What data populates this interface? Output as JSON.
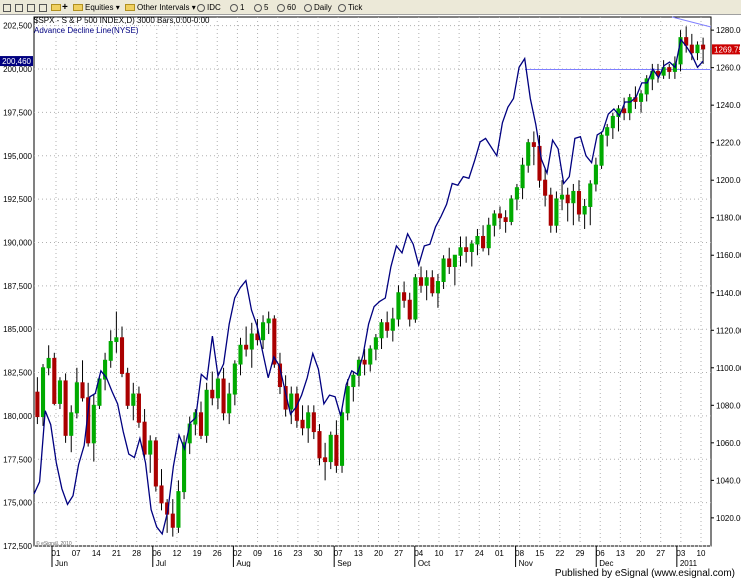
{
  "toolbar": {
    "items": [
      "Equities",
      "Other Intervals",
      "IDC",
      "1",
      "5",
      "60",
      "Daily",
      "Tick"
    ]
  },
  "footer": {
    "text": "Published by eSignal (www.esignal.com)"
  },
  "chart_data": {
    "type": "candlestick+line",
    "title": "$SPX - S & P 500 INDEX,D) 3000 Bars,0:00-0:00",
    "subtitle": "Advance Decline Line(NYSE)",
    "left_axis": {
      "ticks": [
        "172,500",
        "175,000",
        "177,500",
        "180,000",
        "182,500",
        "185,000",
        "187,500",
        "190,000",
        "192,500",
        "195,000",
        "197,500",
        "200,000",
        "202,500"
      ],
      "range": [
        172500,
        203000
      ]
    },
    "right_axis": {
      "ticks": [
        "1020.00",
        "1040.00",
        "1060.00",
        "1080.00",
        "1100.00",
        "1120.00",
        "1140.00",
        "1160.00",
        "1180.00",
        "1200.00",
        "1220.00",
        "1240.00",
        "1260.00",
        "1280.00"
      ],
      "range": [
        1005,
        1287
      ]
    },
    "left_last_label": "200,460",
    "right_last_label": "1269.75",
    "x_ticks": [
      "01",
      "07",
      "14",
      "21",
      "28",
      "06",
      "12",
      "19",
      "26",
      "02",
      "09",
      "16",
      "23",
      "30",
      "07",
      "13",
      "20",
      "27",
      "04",
      "10",
      "17",
      "24",
      "01",
      "08",
      "15",
      "22",
      "29",
      "06",
      "13",
      "20",
      "27",
      "03",
      "10"
    ],
    "x_months": [
      "Jun",
      "Jul",
      "Aug",
      "Sep",
      "Oct",
      "Nov",
      "Dec",
      "2011"
    ],
    "watermark": "© eSignal, 2010",
    "colors": {
      "up": "#00aa00",
      "down": "#aa0000",
      "ad_line": "#000080",
      "hline": "#8080ff"
    },
    "candles": [
      [
        1087,
        1095,
        1070,
        1074
      ],
      [
        1074,
        1102,
        1069,
        1100
      ],
      [
        1100,
        1112,
        1096,
        1105
      ],
      [
        1105,
        1108,
        1080,
        1081
      ],
      [
        1081,
        1095,
        1078,
        1093
      ],
      [
        1093,
        1097,
        1060,
        1064
      ],
      [
        1064,
        1080,
        1055,
        1076
      ],
      [
        1076,
        1100,
        1073,
        1092
      ],
      [
        1092,
        1104,
        1082,
        1084
      ],
      [
        1084,
        1092,
        1058,
        1060
      ],
      [
        1060,
        1086,
        1050,
        1080
      ],
      [
        1080,
        1095,
        1078,
        1094
      ],
      [
        1094,
        1108,
        1088,
        1104
      ],
      [
        1104,
        1120,
        1100,
        1114
      ],
      [
        1114,
        1130,
        1108,
        1116
      ],
      [
        1116,
        1122,
        1095,
        1097
      ],
      [
        1097,
        1100,
        1078,
        1080
      ],
      [
        1080,
        1092,
        1072,
        1086
      ],
      [
        1086,
        1090,
        1068,
        1071
      ],
      [
        1071,
        1078,
        1052,
        1054
      ],
      [
        1054,
        1064,
        1044,
        1061
      ],
      [
        1061,
        1063,
        1034,
        1037
      ],
      [
        1037,
        1046,
        1024,
        1028
      ],
      [
        1028,
        1030,
        1012,
        1022
      ],
      [
        1022,
        1030,
        1010,
        1015
      ],
      [
        1015,
        1040,
        1012,
        1034
      ],
      [
        1034,
        1064,
        1030,
        1060
      ],
      [
        1060,
        1074,
        1054,
        1070
      ],
      [
        1070,
        1078,
        1064,
        1076
      ],
      [
        1076,
        1082,
        1062,
        1064
      ],
      [
        1064,
        1092,
        1060,
        1088
      ],
      [
        1088,
        1098,
        1080,
        1084
      ],
      [
        1084,
        1098,
        1078,
        1094
      ],
      [
        1094,
        1100,
        1072,
        1076
      ],
      [
        1076,
        1092,
        1070,
        1086
      ],
      [
        1086,
        1104,
        1080,
        1102
      ],
      [
        1102,
        1116,
        1096,
        1112
      ],
      [
        1112,
        1122,
        1106,
        1110
      ],
      [
        1110,
        1124,
        1100,
        1118
      ],
      [
        1118,
        1126,
        1112,
        1115
      ],
      [
        1115,
        1128,
        1110,
        1124
      ],
      [
        1124,
        1130,
        1118,
        1126
      ],
      [
        1126,
        1128,
        1100,
        1102
      ],
      [
        1102,
        1108,
        1086,
        1090
      ],
      [
        1090,
        1096,
        1074,
        1078
      ],
      [
        1078,
        1090,
        1070,
        1086
      ],
      [
        1086,
        1090,
        1068,
        1072
      ],
      [
        1072,
        1080,
        1064,
        1068
      ],
      [
        1068,
        1080,
        1060,
        1076
      ],
      [
        1076,
        1080,
        1062,
        1066
      ],
      [
        1066,
        1070,
        1048,
        1052
      ],
      [
        1052,
        1060,
        1040,
        1050
      ],
      [
        1050,
        1066,
        1046,
        1064
      ],
      [
        1064,
        1072,
        1044,
        1048
      ],
      [
        1048,
        1078,
        1044,
        1076
      ],
      [
        1076,
        1094,
        1072,
        1090
      ],
      [
        1090,
        1098,
        1082,
        1096
      ],
      [
        1096,
        1106,
        1090,
        1104
      ],
      [
        1104,
        1110,
        1096,
        1102
      ],
      [
        1102,
        1112,
        1098,
        1110
      ],
      [
        1110,
        1118,
        1104,
        1116
      ],
      [
        1116,
        1126,
        1110,
        1124
      ],
      [
        1124,
        1130,
        1116,
        1120
      ],
      [
        1120,
        1132,
        1114,
        1126
      ],
      [
        1126,
        1144,
        1122,
        1140
      ],
      [
        1140,
        1146,
        1132,
        1136
      ],
      [
        1136,
        1140,
        1122,
        1126
      ],
      [
        1126,
        1150,
        1124,
        1148
      ],
      [
        1148,
        1154,
        1140,
        1144
      ],
      [
        1144,
        1152,
        1136,
        1148
      ],
      [
        1148,
        1152,
        1138,
        1140
      ],
      [
        1140,
        1150,
        1132,
        1146
      ],
      [
        1146,
        1160,
        1142,
        1158
      ],
      [
        1158,
        1164,
        1150,
        1154
      ],
      [
        1154,
        1160,
        1144,
        1160
      ],
      [
        1160,
        1170,
        1154,
        1164
      ],
      [
        1164,
        1170,
        1156,
        1162
      ],
      [
        1162,
        1168,
        1154,
        1166
      ],
      [
        1166,
        1174,
        1160,
        1170
      ],
      [
        1170,
        1176,
        1162,
        1164
      ],
      [
        1164,
        1180,
        1160,
        1176
      ],
      [
        1176,
        1184,
        1170,
        1182
      ],
      [
        1182,
        1186,
        1174,
        1180
      ],
      [
        1180,
        1184,
        1172,
        1178
      ],
      [
        1178,
        1192,
        1176,
        1190
      ],
      [
        1190,
        1198,
        1184,
        1196
      ],
      [
        1196,
        1212,
        1190,
        1208
      ],
      [
        1208,
        1222,
        1204,
        1220
      ],
      [
        1220,
        1226,
        1208,
        1218
      ],
      [
        1218,
        1224,
        1196,
        1200
      ],
      [
        1200,
        1206,
        1186,
        1192
      ],
      [
        1192,
        1196,
        1172,
        1176
      ],
      [
        1176,
        1194,
        1172,
        1190
      ],
      [
        1190,
        1200,
        1184,
        1192
      ],
      [
        1192,
        1196,
        1178,
        1188
      ],
      [
        1188,
        1198,
        1176,
        1194
      ],
      [
        1194,
        1200,
        1178,
        1182
      ],
      [
        1182,
        1190,
        1174,
        1186
      ],
      [
        1186,
        1200,
        1176,
        1198
      ],
      [
        1198,
        1212,
        1194,
        1208
      ],
      [
        1208,
        1226,
        1206,
        1224
      ],
      [
        1224,
        1230,
        1218,
        1228
      ],
      [
        1228,
        1236,
        1222,
        1234
      ],
      [
        1234,
        1240,
        1226,
        1238
      ],
      [
        1238,
        1244,
        1232,
        1236
      ],
      [
        1236,
        1246,
        1232,
        1244
      ],
      [
        1244,
        1250,
        1238,
        1242
      ],
      [
        1242,
        1248,
        1236,
        1246
      ],
      [
        1246,
        1256,
        1242,
        1254
      ],
      [
        1254,
        1262,
        1248,
        1258
      ],
      [
        1258,
        1262,
        1252,
        1256
      ],
      [
        1256,
        1264,
        1254,
        1260
      ],
      [
        1260,
        1262,
        1254,
        1258
      ],
      [
        1258,
        1266,
        1254,
        1262
      ],
      [
        1262,
        1280,
        1258,
        1276
      ],
      [
        1276,
        1282,
        1268,
        1272
      ],
      [
        1272,
        1278,
        1264,
        1268
      ],
      [
        1268,
        1274,
        1264,
        1272
      ],
      [
        1272,
        1276,
        1262,
        1270
      ]
    ],
    "ad_line": [
      175500,
      176200,
      180300,
      179500,
      177300,
      175800,
      174900,
      175400,
      177200,
      178300,
      181100,
      181300,
      182600,
      182200,
      181400,
      180700,
      179100,
      177800,
      177600,
      178700,
      177300,
      174600,
      173600,
      173200,
      174500,
      177100,
      178900,
      178100,
      179600,
      179900,
      182400,
      182100,
      184600,
      182300,
      183000,
      185300,
      186800,
      187400,
      187800,
      186100,
      185200,
      183700,
      182200,
      183400,
      182900,
      181500,
      180100,
      180500,
      181200,
      182200,
      183600,
      182700,
      180700,
      181200,
      181100,
      180000,
      181800,
      182600,
      182400,
      183500,
      185300,
      186300,
      186600,
      186800,
      188600,
      189800,
      189400,
      190500,
      189900,
      188700,
      189800,
      189900,
      190900,
      191500,
      192200,
      193400,
      193300,
      193800,
      193700,
      194700,
      195800,
      196000,
      195500,
      195000,
      196900,
      197800,
      198300,
      200100,
      200600,
      198300,
      196800,
      194800,
      194000,
      195900,
      195400,
      193400,
      193800,
      196000,
      196100,
      195000,
      194600,
      196200,
      196400,
      197400,
      197700,
      197300,
      198100,
      198100,
      198400,
      199200,
      199200,
      200000,
      199500,
      200200,
      200400,
      200100,
      201700,
      201300,
      200800,
      200100,
      200460
    ]
  }
}
